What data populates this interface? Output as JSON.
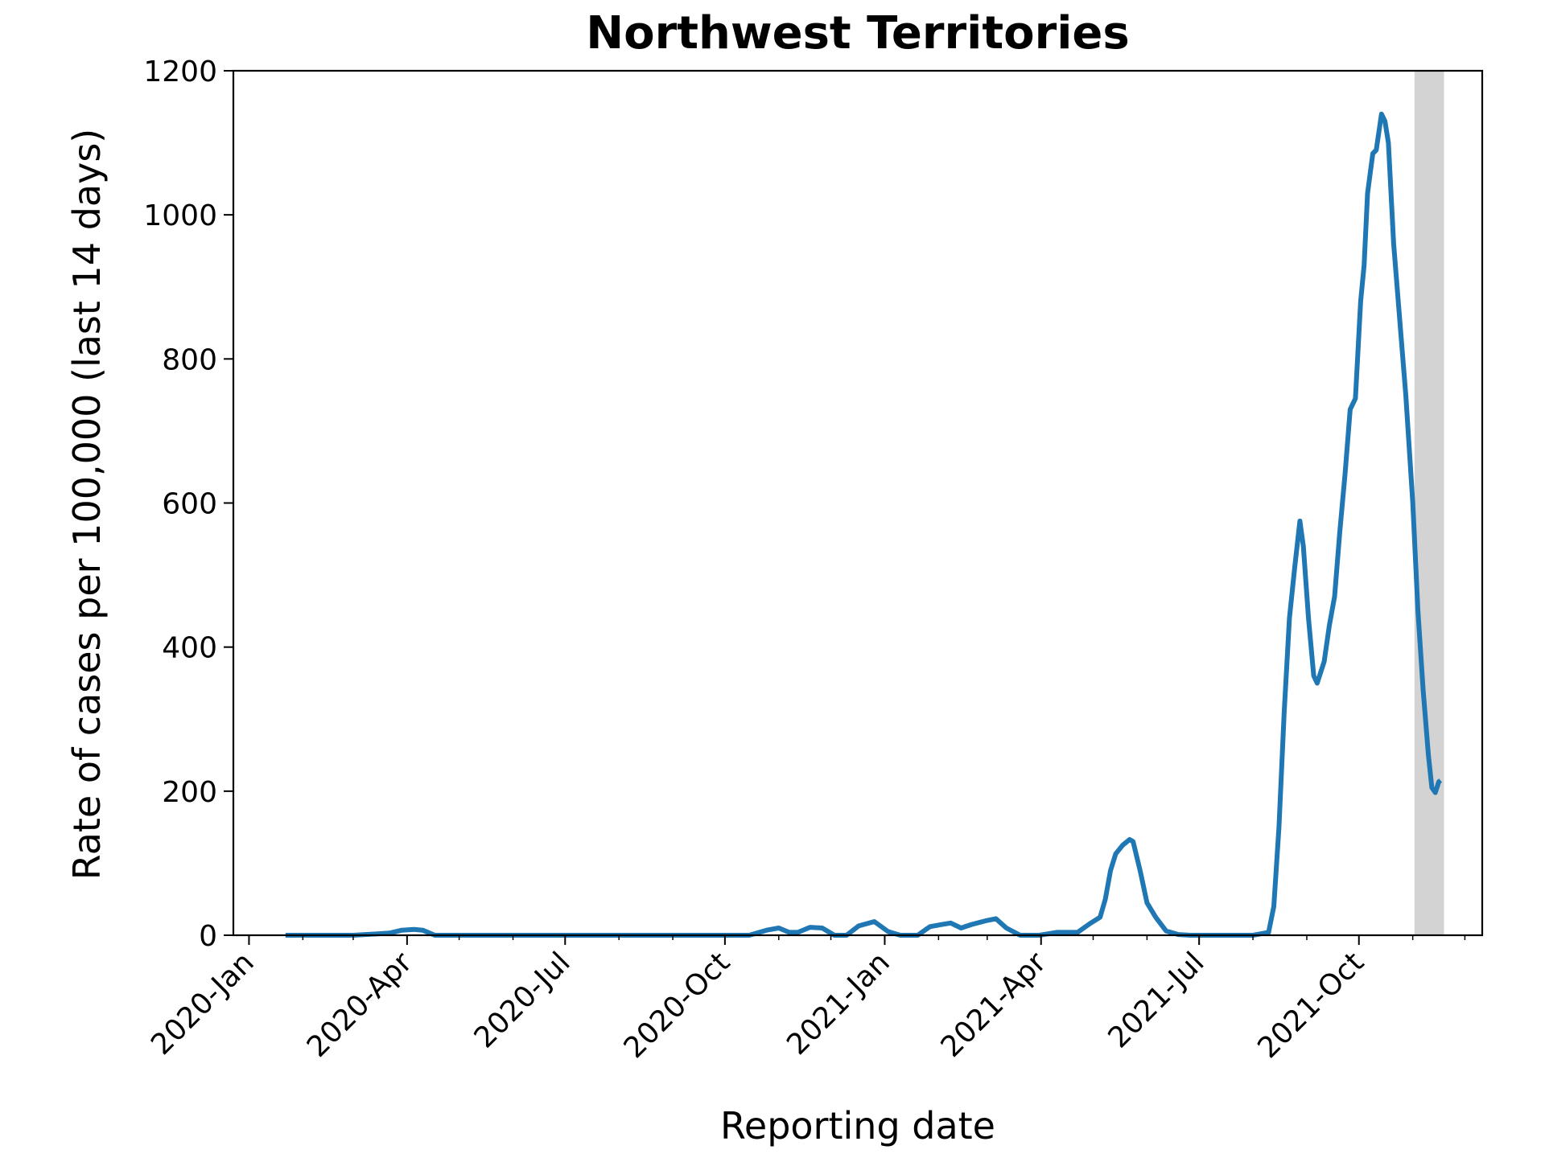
{
  "chart_data": {
    "type": "line",
    "title": "Northwest Territories",
    "xlabel": "Reporting date",
    "ylabel": "Rate of cases per 100,000 (last 14 days)",
    "ylim": [
      0,
      1200
    ],
    "xlim": [
      "2019-12-23",
      "2021-12-11"
    ],
    "grid": false,
    "y_ticks": [
      0,
      200,
      400,
      600,
      800,
      1000,
      1200
    ],
    "x_ticks": [
      {
        "date": "2020-01-01",
        "label": "2020-Jan"
      },
      {
        "date": "2020-04-01",
        "label": "2020-Apr"
      },
      {
        "date": "2020-07-01",
        "label": "2020-Jul"
      },
      {
        "date": "2020-10-01",
        "label": "2020-Oct"
      },
      {
        "date": "2021-01-01",
        "label": "2021-Jan"
      },
      {
        "date": "2021-04-01",
        "label": "2021-Apr"
      },
      {
        "date": "2021-07-01",
        "label": "2021-Jul"
      },
      {
        "date": "2021-10-01",
        "label": "2021-Oct"
      }
    ],
    "minor_ticks": [
      "2020-02-01",
      "2020-03-01",
      "2020-05-01",
      "2020-06-01",
      "2020-08-01",
      "2020-09-01",
      "2020-11-01",
      "2020-12-01",
      "2021-02-01",
      "2021-03-01",
      "2021-05-01",
      "2021-06-01",
      "2021-08-01",
      "2021-09-01",
      "2021-11-01",
      "2021-12-01"
    ],
    "shaded_region": {
      "start": "2021-11-02",
      "end": "2021-11-19",
      "color": "#d3d3d3"
    },
    "series": [
      {
        "color": "#1f77b4",
        "points": [
          [
            "2020-01-22",
            0
          ],
          [
            "2020-03-01",
            0
          ],
          [
            "2020-03-15",
            2
          ],
          [
            "2020-03-22",
            3
          ],
          [
            "2020-03-29",
            7
          ],
          [
            "2020-04-05",
            8
          ],
          [
            "2020-04-10",
            7
          ],
          [
            "2020-04-17",
            0
          ],
          [
            "2020-10-15",
            0
          ],
          [
            "2020-10-25",
            7
          ],
          [
            "2020-11-01",
            10
          ],
          [
            "2020-11-07",
            4
          ],
          [
            "2020-11-12",
            4
          ],
          [
            "2020-11-19",
            11
          ],
          [
            "2020-11-26",
            10
          ],
          [
            "2020-12-03",
            0
          ],
          [
            "2020-12-10",
            0
          ],
          [
            "2020-12-17",
            13
          ],
          [
            "2020-12-26",
            19
          ],
          [
            "2021-01-03",
            5
          ],
          [
            "2021-01-10",
            0
          ],
          [
            "2021-01-20",
            0
          ],
          [
            "2021-01-27",
            12
          ],
          [
            "2021-02-03",
            15
          ],
          [
            "2021-02-08",
            17
          ],
          [
            "2021-02-14",
            10
          ],
          [
            "2021-02-20",
            15
          ],
          [
            "2021-02-28",
            20
          ],
          [
            "2021-03-06",
            23
          ],
          [
            "2021-03-12",
            10
          ],
          [
            "2021-03-20",
            0
          ],
          [
            "2021-03-31",
            0
          ],
          [
            "2021-04-10",
            4
          ],
          [
            "2021-04-22",
            4
          ],
          [
            "2021-04-29",
            16
          ],
          [
            "2021-05-05",
            25
          ],
          [
            "2021-05-08",
            50
          ],
          [
            "2021-05-11",
            90
          ],
          [
            "2021-05-14",
            113
          ],
          [
            "2021-05-18",
            125
          ],
          [
            "2021-05-22",
            133
          ],
          [
            "2021-05-24",
            130
          ],
          [
            "2021-05-28",
            90
          ],
          [
            "2021-06-01",
            45
          ],
          [
            "2021-06-06",
            25
          ],
          [
            "2021-06-12",
            6
          ],
          [
            "2021-06-19",
            1
          ],
          [
            "2021-06-26",
            0
          ],
          [
            "2021-08-01",
            0
          ],
          [
            "2021-08-10",
            4
          ],
          [
            "2021-08-13",
            40
          ],
          [
            "2021-08-16",
            150
          ],
          [
            "2021-08-19",
            310
          ],
          [
            "2021-08-22",
            440
          ],
          [
            "2021-08-25",
            510
          ],
          [
            "2021-08-28",
            575
          ],
          [
            "2021-08-30",
            540
          ],
          [
            "2021-09-02",
            440
          ],
          [
            "2021-09-05",
            360
          ],
          [
            "2021-09-07",
            350
          ],
          [
            "2021-09-11",
            380
          ],
          [
            "2021-09-14",
            430
          ],
          [
            "2021-09-17",
            470
          ],
          [
            "2021-09-20",
            560
          ],
          [
            "2021-09-23",
            640
          ],
          [
            "2021-09-26",
            730
          ],
          [
            "2021-09-29",
            745
          ],
          [
            "2021-10-02",
            880
          ],
          [
            "2021-10-04",
            930
          ],
          [
            "2021-10-06",
            1030
          ],
          [
            "2021-10-09",
            1085
          ],
          [
            "2021-10-11",
            1090
          ],
          [
            "2021-10-14",
            1140
          ],
          [
            "2021-10-16",
            1130
          ],
          [
            "2021-10-18",
            1100
          ],
          [
            "2021-10-21",
            960
          ],
          [
            "2021-10-25",
            840
          ],
          [
            "2021-10-28",
            750
          ],
          [
            "2021-11-01",
            600
          ],
          [
            "2021-11-04",
            450
          ],
          [
            "2021-11-07",
            340
          ],
          [
            "2021-11-10",
            250
          ],
          [
            "2021-11-12",
            205
          ],
          [
            "2021-11-14",
            198
          ],
          [
            "2021-11-16",
            213
          ],
          [
            "2021-11-17",
            215
          ]
        ]
      }
    ]
  }
}
